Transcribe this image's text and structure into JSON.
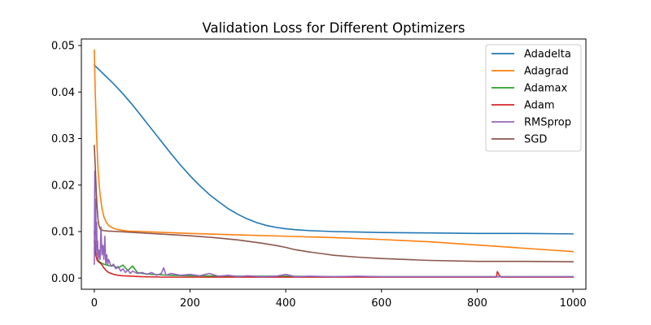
{
  "chart_data": {
    "type": "line",
    "title": "Validation Loss for Different Optimizers",
    "xlabel": "",
    "ylabel": "",
    "xlim": [
      -27,
      1027
    ],
    "ylim": [
      -0.0024,
      0.0514
    ],
    "xticks": [
      0,
      200,
      400,
      600,
      800,
      1000
    ],
    "xtick_labels": [
      "0",
      "200",
      "400",
      "600",
      "800",
      "1000"
    ],
    "yticks": [
      0.0,
      0.01,
      0.02,
      0.03,
      0.04,
      0.05
    ],
    "ytick_labels": [
      "0.00",
      "0.01",
      "0.02",
      "0.03",
      "0.04",
      "0.05"
    ],
    "grid": false,
    "legend_position": "top-right",
    "series": [
      {
        "name": "Adadelta",
        "color": "#1f77b4",
        "x": [
          0,
          20,
          40,
          60,
          80,
          100,
          120,
          140,
          160,
          180,
          200,
          220,
          240,
          260,
          280,
          300,
          320,
          340,
          360,
          380,
          400,
          420,
          450,
          500,
          550,
          600,
          700,
          800,
          900,
          1000
        ],
        "y": [
          0.0458,
          0.0438,
          0.0418,
          0.0396,
          0.0372,
          0.0346,
          0.032,
          0.0294,
          0.0268,
          0.0243,
          0.022,
          0.0199,
          0.018,
          0.0164,
          0.0149,
          0.0137,
          0.0127,
          0.0119,
          0.0113,
          0.0109,
          0.0106,
          0.0104,
          0.0102,
          0.01,
          0.0099,
          0.0098,
          0.0097,
          0.0096,
          0.0096,
          0.0095
        ]
      },
      {
        "name": "Adagrad",
        "color": "#ff7f0e",
        "x": [
          0,
          2,
          5,
          8,
          12,
          16,
          20,
          25,
          30,
          40,
          50,
          70,
          100,
          150,
          200,
          300,
          400,
          500,
          600,
          700,
          800,
          900,
          1000
        ],
        "y": [
          0.049,
          0.04,
          0.03,
          0.023,
          0.018,
          0.015,
          0.0132,
          0.012,
          0.0113,
          0.0107,
          0.0104,
          0.0101,
          0.01,
          0.0098,
          0.0096,
          0.0093,
          0.009,
          0.0087,
          0.0083,
          0.0078,
          0.0071,
          0.0064,
          0.0057
        ]
      },
      {
        "name": "Adamax",
        "color": "#2ca02c",
        "x": [
          0,
          3,
          6,
          10,
          15,
          20,
          30,
          40,
          50,
          60,
          70,
          80,
          90,
          100,
          120,
          140,
          160,
          200,
          300,
          400,
          500,
          600,
          700,
          800,
          900,
          1000
        ],
        "y": [
          0.008,
          0.005,
          0.0042,
          0.0036,
          0.0032,
          0.003,
          0.0027,
          0.0026,
          0.0022,
          0.0028,
          0.0016,
          0.0026,
          0.0012,
          0.001,
          0.0008,
          0.0007,
          0.0006,
          0.0005,
          0.0004,
          0.0004,
          0.0003,
          0.0003,
          0.0003,
          0.0003,
          0.0003,
          0.0003
        ]
      },
      {
        "name": "Adam",
        "color": "#d62728",
        "x": [
          0,
          3,
          6,
          10,
          15,
          20,
          25,
          30,
          40,
          50,
          60,
          80,
          100,
          150,
          200,
          300,
          400,
          500,
          600,
          700,
          800,
          840,
          842,
          846,
          850,
          900,
          1000
        ],
        "y": [
          0.01,
          0.005,
          0.0038,
          0.0034,
          0.003,
          0.0022,
          0.0016,
          0.0012,
          0.0008,
          0.0006,
          0.0005,
          0.0004,
          0.0003,
          0.0002,
          0.0002,
          0.0002,
          0.0002,
          0.0002,
          0.0002,
          0.0002,
          0.0002,
          0.0002,
          0.0014,
          0.0006,
          0.0002,
          0.0002,
          0.0002
        ]
      },
      {
        "name": "RMSprop",
        "color": "#9467bd",
        "x": [
          0,
          1,
          2,
          3,
          4,
          5,
          6,
          7,
          8,
          10,
          12,
          14,
          16,
          18,
          20,
          22,
          24,
          26,
          28,
          30,
          35,
          40,
          45,
          50,
          55,
          60,
          65,
          70,
          75,
          80,
          90,
          100,
          110,
          120,
          130,
          140,
          145,
          150,
          160,
          180,
          200,
          220,
          240,
          260,
          280,
          300,
          320,
          350,
          380,
          400,
          420,
          450,
          500,
          550,
          600,
          650,
          700,
          750,
          800,
          850,
          900,
          950,
          1000
        ],
        "y": [
          0.003,
          0.023,
          0.009,
          0.017,
          0.006,
          0.012,
          0.005,
          0.008,
          0.004,
          0.006,
          0.004,
          0.011,
          0.005,
          0.007,
          0.004,
          0.009,
          0.003,
          0.005,
          0.003,
          0.004,
          0.0025,
          0.003,
          0.002,
          0.0025,
          0.0015,
          0.002,
          0.0012,
          0.0018,
          0.001,
          0.0015,
          0.001,
          0.0012,
          0.0008,
          0.0012,
          0.0006,
          0.001,
          0.0022,
          0.0006,
          0.001,
          0.0006,
          0.0008,
          0.0005,
          0.001,
          0.0004,
          0.0006,
          0.0003,
          0.0005,
          0.0003,
          0.0004,
          0.0008,
          0.0003,
          0.0004,
          0.0003,
          0.0004,
          0.0003,
          0.0003,
          0.0003,
          0.0003,
          0.0003,
          0.0003,
          0.0003,
          0.0003,
          0.0003
        ]
      },
      {
        "name": "SGD",
        "color": "#8c564b",
        "x": [
          0,
          2,
          4,
          6,
          8,
          10,
          12,
          14,
          16,
          20,
          30,
          50,
          100,
          150,
          200,
          250,
          300,
          350,
          380,
          400,
          420,
          450,
          480,
          500,
          550,
          600,
          650,
          700,
          800,
          900,
          1000
        ],
        "y": [
          0.0285,
          0.024,
          0.019,
          0.015,
          0.0125,
          0.0112,
          0.0106,
          0.0104,
          0.0103,
          0.0102,
          0.0101,
          0.01,
          0.0097,
          0.0094,
          0.0091,
          0.0087,
          0.0082,
          0.0075,
          0.007,
          0.0066,
          0.0061,
          0.0056,
          0.0052,
          0.0049,
          0.0045,
          0.0042,
          0.004,
          0.0038,
          0.0036,
          0.0036,
          0.0035
        ]
      }
    ]
  }
}
